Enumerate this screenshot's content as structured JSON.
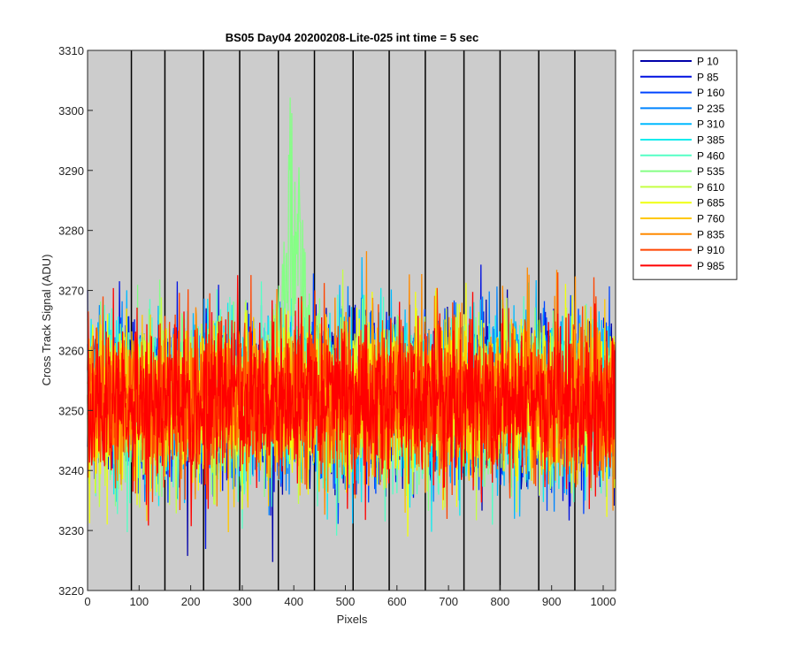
{
  "chart_data": {
    "type": "line",
    "title": "BS05 Day04 20200208-Lite-025 int time = 5 sec",
    "xlabel": "Pixels",
    "ylabel": "Cross Track Signal (ADU)",
    "xlim": [
      0,
      1024
    ],
    "ylim": [
      3220,
      3310
    ],
    "xticks": [
      0,
      100,
      200,
      300,
      400,
      500,
      600,
      700,
      800,
      900,
      1000
    ],
    "yticks": [
      3220,
      3230,
      3240,
      3250,
      3260,
      3270,
      3280,
      3290,
      3300,
      3310
    ],
    "vertical_lines_x": [
      85,
      150,
      225,
      295,
      370,
      440,
      515,
      585,
      655,
      730,
      800,
      875,
      945
    ],
    "plot_background": "#cccccc",
    "legend_position": "outside-top-right",
    "noise": {
      "mean": 3252,
      "std": 6.5,
      "points_per_series": 1024
    },
    "bump": {
      "series": "P 535",
      "center_x": 400,
      "width_x": 30,
      "peak_y": 3305
    },
    "series": [
      {
        "name": "P 10",
        "color": "#0000aa"
      },
      {
        "name": "P 85",
        "color": "#0010e0"
      },
      {
        "name": "P 160",
        "color": "#0045ff"
      },
      {
        "name": "P 235",
        "color": "#0085ff"
      },
      {
        "name": "P 310",
        "color": "#00b9ff"
      },
      {
        "name": "P 385",
        "color": "#10ecee"
      },
      {
        "name": "P 460",
        "color": "#55ffc5"
      },
      {
        "name": "P 535",
        "color": "#85ff85"
      },
      {
        "name": "P 610",
        "color": "#c5ff45"
      },
      {
        "name": "P 685",
        "color": "#f0ff10"
      },
      {
        "name": "P 760",
        "color": "#ffc800"
      },
      {
        "name": "P 835",
        "color": "#ff8a00"
      },
      {
        "name": "P 910",
        "color": "#ff4500"
      },
      {
        "name": "P 985",
        "color": "#ff0000"
      }
    ]
  }
}
